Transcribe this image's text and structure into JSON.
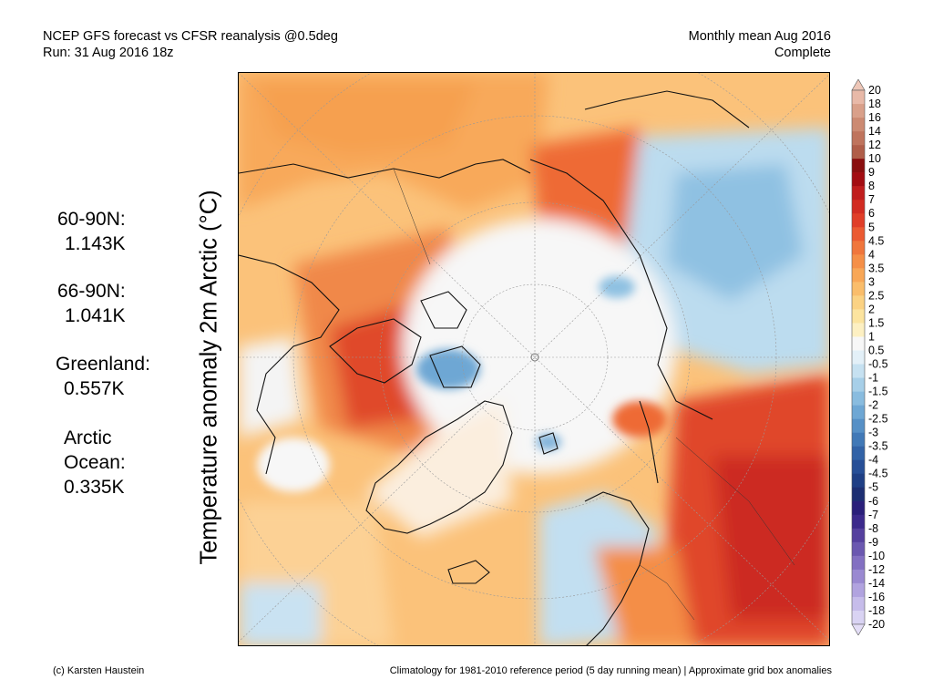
{
  "header": {
    "line1": "NCEP GFS forecast vs CFSR reanalysis @0.5deg",
    "line2": "Run: 31 Aug 2016 18z",
    "right_line1": "Monthly mean Aug 2016",
    "right_line2": "Complete"
  },
  "vertical_title": "Temperature anomaly 2m Arctic (°C)",
  "stats": [
    {
      "label": "60-90N:",
      "value": "1.143K"
    },
    {
      "label": "66-90N:",
      "value": "1.041K"
    },
    {
      "label": "Greenland:",
      "value": "0.557K"
    },
    {
      "label": "Arctic",
      "label2": "Ocean:",
      "value": "0.335K"
    }
  ],
  "legend": {
    "labels": [
      "20",
      "18",
      "16",
      "14",
      "12",
      "10",
      "9",
      "8",
      "7",
      "6",
      "5",
      "4.5",
      "4",
      "3.5",
      "3",
      "2.5",
      "2",
      "1.5",
      "1",
      "0.5",
      "-0.5",
      "-1",
      "-1.5",
      "-2",
      "-2.5",
      "-3",
      "-3.5",
      "-4",
      "-4.5",
      "-5",
      "-6",
      "-7",
      "-8",
      "-9",
      "-10",
      "-12",
      "-14",
      "-16",
      "-18",
      "-20"
    ],
    "colors": [
      "#e8b9a8",
      "#d9a08a",
      "#cc8a72",
      "#bf745d",
      "#b05e49",
      "#8a0f0f",
      "#a30d12",
      "#c01d1d",
      "#d22c22",
      "#e03e28",
      "#eb5a32",
      "#f0763c",
      "#f58f47",
      "#f8a757",
      "#fabd6b",
      "#fbd283",
      "#fce49f",
      "#fdf0c2",
      "#f7f7f7",
      "#e3f0f8",
      "#c6e1f1",
      "#a7cfe8",
      "#89bcdf",
      "#6ea7d4",
      "#5690c6",
      "#4179b7",
      "#3263a7",
      "#274f97",
      "#1f3f85",
      "#1d2f72",
      "#2a1f7a",
      "#3c2a8c",
      "#55409e",
      "#6b58b0",
      "#8370c2",
      "#9a89d1",
      "#b1a3df",
      "#c6bcea",
      "#d9d3f3"
    ]
  },
  "footer": {
    "left": "(c) Karsten Haustein",
    "right": "Climatology for 1981-2010 reference period (5 day running mean) | Approximate grid box anomalies"
  }
}
